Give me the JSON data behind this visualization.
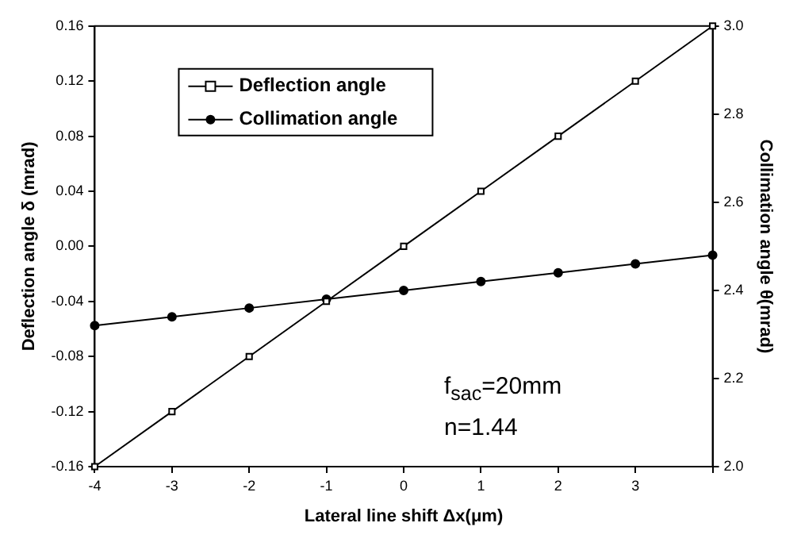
{
  "chart_data": {
    "type": "line",
    "xlabel": "Lateral line shift Δx(μm)",
    "ylabel": "Deflection angle δ (mrad)",
    "y2label": "Collimation angle θ(mrad)",
    "x": [
      -4,
      -3,
      -2,
      -1,
      0,
      1,
      2,
      3,
      4
    ],
    "series": [
      {
        "name": "Deflection angle",
        "color": "#000000",
        "marker": "square",
        "values": [
          -0.16,
          -0.12,
          -0.08,
          -0.04,
          0,
          0.04,
          0.08,
          0.12,
          0.16
        ]
      },
      {
        "name": "Collimation angle",
        "color": "#000000",
        "marker": "circle",
        "axis": "y2",
        "values": [
          2.32,
          2.34,
          2.36,
          2.38,
          2.4,
          2.42,
          2.44,
          2.46,
          2.48
        ]
      }
    ],
    "xlim": [
      -4,
      4
    ],
    "xticks": [
      -4,
      -3,
      -2,
      -1,
      0,
      1,
      2,
      3,
      {
        "value": 4,
        "label": null
      }
    ],
    "ylim": [
      -0.16,
      0.16
    ],
    "yticks": [
      {
        "value": -0.16,
        "label": "-0.16"
      },
      {
        "value": -0.12,
        "label": "-0.12"
      },
      -0.08,
      -0.04,
      {
        "value": 0,
        "label": "0.00"
      },
      0.04,
      0.08,
      0.12,
      0.16
    ],
    "y2lim": [
      2.0,
      3.0
    ],
    "y2ticks": [
      {
        "value": 2,
        "label": "2.0"
      },
      2.2,
      2.4,
      2.6,
      2.8,
      {
        "value": 3,
        "label": "3.0"
      }
    ],
    "grid": false,
    "legend": "top left",
    "line_style": "solid",
    "annotations": [
      "f$_{sac}$=20mm",
      "n=1.44"
    ]
  }
}
